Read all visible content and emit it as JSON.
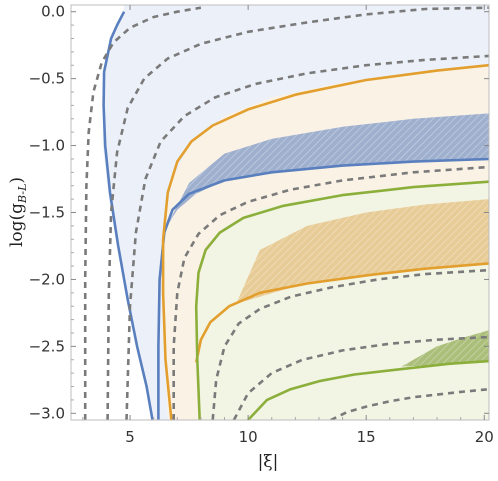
{
  "chart_data": {
    "type": "line",
    "title": "",
    "xlabel": "|ξ|",
    "ylabel": "log(g_{B-L})",
    "ylabel_main": "log(g",
    "ylabel_sub": "B-L",
    "ylabel_close": ")",
    "xlim": [
      2.5,
      20.2
    ],
    "ylim": [
      -3.05,
      0.05
    ],
    "x_ticks": [
      5,
      10,
      15,
      20
    ],
    "x_tick_labels": [
      "5",
      "10",
      "15",
      "20"
    ],
    "y_ticks": [
      0.0,
      -0.5,
      -1.0,
      -1.5,
      -2.0,
      -2.5,
      -3.0
    ],
    "y_tick_labels": [
      "0.0",
      "−0.5",
      "−1.0",
      "−1.5",
      "−2.0",
      "−2.5",
      "−3.0"
    ],
    "grid": false,
    "legend": "none",
    "colors": {
      "blue": "#5a7fbe",
      "orange": "#e39f2e",
      "green": "#8caf3c",
      "dashed": "#7a7a7a",
      "blue_fill_light": "#eaf0f8",
      "blue_fill_dark": "#8ea5cb",
      "orange_fill_light": "#fcf2e2",
      "orange_fill_dark": "#e6c48a",
      "green_fill_light": "#f1f4e3",
      "green_fill_dark": "#9fb568",
      "overlap_fill": "#ddd5cf"
    },
    "regions": [
      {
        "name": "blue-region",
        "color": "blue_fill_light",
        "boundary": [
          [
            4.7,
            0.0
          ],
          [
            4.1,
            -0.25
          ],
          [
            3.85,
            -0.6
          ],
          [
            3.85,
            -1.0
          ],
          [
            4.1,
            -1.4
          ],
          [
            4.6,
            -1.9
          ],
          [
            5.1,
            -2.3
          ],
          [
            5.6,
            -2.7
          ],
          [
            5.9,
            -3.05
          ],
          [
            20.2,
            -3.05
          ],
          [
            20.2,
            0.05
          ],
          [
            4.75,
            0.05
          ]
        ]
      },
      {
        "name": "orange-region",
        "color": "orange_fill_light",
        "boundary": [
          [
            6.6,
            -3.05
          ],
          [
            6.45,
            -2.5
          ],
          [
            6.35,
            -2.0
          ],
          [
            6.45,
            -1.6
          ],
          [
            6.8,
            -1.25
          ],
          [
            7.5,
            -1.0
          ],
          [
            9.0,
            -0.78
          ],
          [
            11.0,
            -0.64
          ],
          [
            14.0,
            -0.53
          ],
          [
            17.0,
            -0.46
          ],
          [
            20.2,
            -0.4
          ],
          [
            20.2,
            -3.05
          ]
        ]
      },
      {
        "name": "green-region",
        "color": "green_fill_light",
        "boundary": [
          [
            7.9,
            -3.05
          ],
          [
            7.85,
            -2.6
          ],
          [
            7.8,
            -2.2
          ],
          [
            8.1,
            -1.85
          ],
          [
            9.0,
            -1.6
          ],
          [
            10.5,
            -1.47
          ],
          [
            13.0,
            -1.38
          ],
          [
            16.0,
            -1.32
          ],
          [
            20.2,
            -1.27
          ],
          [
            20.2,
            -3.05
          ]
        ]
      },
      {
        "name": "blue-band",
        "color": "blue_fill_dark",
        "boundary": [
          [
            7.5,
            -1.28
          ],
          [
            9.0,
            -1.06
          ],
          [
            11.0,
            -0.95
          ],
          [
            14.0,
            -0.86
          ],
          [
            17.0,
            -0.8
          ],
          [
            20.2,
            -0.76
          ],
          [
            20.2,
            -1.1
          ],
          [
            17.0,
            -1.12
          ],
          [
            14.0,
            -1.15
          ],
          [
            11.0,
            -1.2
          ],
          [
            9.0,
            -1.26
          ],
          [
            7.8,
            -1.36
          ],
          [
            7.0,
            -1.48
          ],
          [
            6.5,
            -1.62
          ]
        ]
      },
      {
        "name": "orange-band",
        "color": "orange_fill_dark",
        "boundary": [
          [
            9.5,
            -2.18
          ],
          [
            10.5,
            -1.78
          ],
          [
            12.5,
            -1.6
          ],
          [
            15.0,
            -1.5
          ],
          [
            17.5,
            -1.44
          ],
          [
            20.2,
            -1.4
          ],
          [
            20.2,
            -1.88
          ],
          [
            17.0,
            -1.93
          ],
          [
            14.0,
            -1.99
          ],
          [
            12.0,
            -2.05
          ],
          [
            10.5,
            -2.13
          ]
        ]
      },
      {
        "name": "green-band",
        "color": "green_fill_dark",
        "boundary": [
          [
            16.5,
            -2.65
          ],
          [
            18.0,
            -2.5
          ],
          [
            19.2,
            -2.43
          ],
          [
            20.2,
            -2.38
          ],
          [
            20.2,
            -2.62
          ],
          [
            18.0,
            -2.64
          ]
        ]
      }
    ],
    "series": [
      {
        "name": "",
        "color": "blue",
        "style": "solid",
        "x": [
          4.75,
          4.45,
          4.2,
          3.9,
          3.88,
          3.95,
          4.15,
          4.5,
          4.9,
          5.3,
          5.7,
          5.95
        ],
        "y": [
          0.0,
          -0.1,
          -0.2,
          -0.45,
          -0.7,
          -1.0,
          -1.35,
          -1.75,
          -2.15,
          -2.5,
          -2.8,
          -3.05
        ]
      },
      {
        "name": "",
        "color": "blue",
        "style": "solid",
        "x": [
          6.2,
          6.2,
          6.25,
          6.45,
          6.8,
          7.5,
          9.0,
          11.0,
          14.0,
          17.0,
          20.2
        ],
        "y": [
          -3.05,
          -2.5,
          -2.0,
          -1.65,
          -1.48,
          -1.36,
          -1.26,
          -1.2,
          -1.15,
          -1.12,
          -1.1
        ]
      },
      {
        "name": "",
        "color": "orange",
        "style": "solid",
        "x": [
          6.75,
          6.5,
          6.4,
          6.4,
          6.6,
          7.0,
          7.6,
          8.5,
          10.0,
          12.0,
          15.0,
          18.0,
          20.2
        ],
        "y": [
          -3.05,
          -2.6,
          -2.1,
          -1.7,
          -1.35,
          -1.12,
          -0.97,
          -0.85,
          -0.73,
          -0.62,
          -0.51,
          -0.44,
          -0.4
        ]
      },
      {
        "name": "",
        "color": "orange",
        "style": "solid",
        "x": [
          7.8,
          8.0,
          8.4,
          9.2,
          10.5,
          12.5,
          15.0,
          17.5,
          20.2
        ],
        "y": [
          -2.62,
          -2.45,
          -2.32,
          -2.2,
          -2.1,
          -2.03,
          -1.97,
          -1.92,
          -1.88
        ]
      },
      {
        "name": "",
        "color": "green",
        "style": "solid",
        "x": [
          7.95,
          7.85,
          7.8,
          7.9,
          8.2,
          8.8,
          9.8,
          11.5,
          14.0,
          17.0,
          20.2
        ],
        "y": [
          -3.05,
          -2.6,
          -2.2,
          -1.95,
          -1.78,
          -1.65,
          -1.54,
          -1.45,
          -1.37,
          -1.31,
          -1.27
        ]
      },
      {
        "name": "",
        "color": "green",
        "style": "solid",
        "x": [
          10.0,
          10.8,
          11.8,
          13.0,
          14.5,
          16.5,
          18.5,
          20.2
        ],
        "y": [
          -3.05,
          -2.9,
          -2.82,
          -2.76,
          -2.71,
          -2.67,
          -2.63,
          -2.61
        ]
      },
      {
        "name": "",
        "color": "dashed",
        "style": "dashed",
        "x": [
          3.1,
          3.1,
          3.15,
          3.25,
          3.45,
          3.8,
          4.3,
          5.0,
          6.0,
          7.0,
          8.0
        ],
        "y": [
          -3.05,
          -2.0,
          -1.3,
          -0.9,
          -0.6,
          -0.38,
          -0.23,
          -0.12,
          -0.04,
          0.0,
          0.03
        ]
      },
      {
        "name": "",
        "color": "dashed",
        "style": "dashed",
        "x": [
          4.05,
          4.1,
          4.2,
          4.45,
          4.9,
          5.6,
          6.6,
          8.0,
          10.0,
          12.5,
          15.0,
          17.5,
          20.2
        ],
        "y": [
          -3.05,
          -2.1,
          -1.5,
          -1.05,
          -0.72,
          -0.5,
          -0.35,
          -0.24,
          -0.15,
          -0.08,
          -0.02,
          0.02,
          0.03
        ]
      },
      {
        "name": "",
        "color": "dashed",
        "style": "dashed",
        "x": [
          4.85,
          5.0,
          5.25,
          5.65,
          6.3,
          7.3,
          8.6,
          10.3,
          12.5,
          15.0,
          17.5,
          20.2
        ],
        "y": [
          -3.05,
          -2.2,
          -1.65,
          -1.25,
          -0.97,
          -0.78,
          -0.64,
          -0.54,
          -0.46,
          -0.4,
          -0.36,
          -0.33
        ]
      },
      {
        "name": "",
        "color": "dashed",
        "style": "dashed",
        "x": [
          6.85,
          6.85,
          7.0,
          7.3,
          7.9,
          8.8,
          10.0,
          11.8,
          14.0,
          17.0,
          20.2
        ],
        "y": [
          -3.05,
          -2.5,
          -2.1,
          -1.84,
          -1.66,
          -1.52,
          -1.42,
          -1.33,
          -1.26,
          -1.2,
          -1.16
        ]
      },
      {
        "name": "",
        "color": "dashed",
        "style": "dashed",
        "x": [
          8.5,
          8.65,
          9.0,
          9.6,
          10.5,
          11.8,
          13.5,
          15.5,
          17.5,
          20.2
        ],
        "y": [
          -3.05,
          -2.75,
          -2.5,
          -2.33,
          -2.22,
          -2.13,
          -2.06,
          -2.0,
          -1.96,
          -1.93
        ]
      },
      {
        "name": "",
        "color": "dashed",
        "style": "dashed",
        "x": [
          9.4,
          10.0,
          11.0,
          12.3,
          14.0,
          16.0,
          18.0,
          20.2
        ],
        "y": [
          -3.05,
          -2.85,
          -2.7,
          -2.6,
          -2.53,
          -2.48,
          -2.45,
          -2.43
        ]
      },
      {
        "name": "",
        "color": "dashed",
        "style": "dashed",
        "x": [
          13.5,
          14.2,
          15.0,
          16.0,
          17.0,
          18.0,
          19.0,
          20.2
        ],
        "y": [
          -3.05,
          -2.99,
          -2.95,
          -2.91,
          -2.88,
          -2.86,
          -2.84,
          -2.82
        ]
      }
    ]
  }
}
